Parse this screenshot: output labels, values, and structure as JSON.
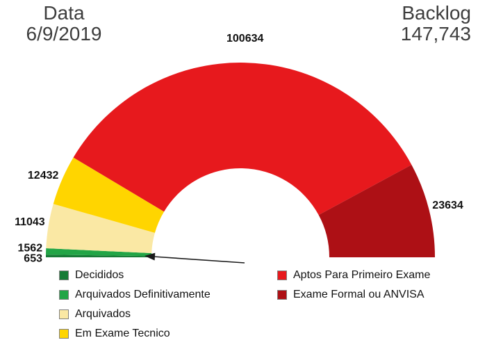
{
  "header": {
    "date_label": "Data",
    "date_value": "6/9/2019",
    "backlog_label": "Backlog",
    "backlog_value": "147,743"
  },
  "chart_data": {
    "type": "pie",
    "variant": "half-donut-gauge",
    "start_angle_deg": 180,
    "end_angle_deg": 0,
    "legend_position": "bottom",
    "segments": [
      {
        "label": "Decididos",
        "value": 653,
        "value_label": "653",
        "color": "#177b36"
      },
      {
        "label": "Arquivados Definitivamente",
        "value": 1562,
        "value_label": "1562",
        "color": "#22a546"
      },
      {
        "label": "Arquivados",
        "value": 11043,
        "value_label": "11043",
        "color": "#fae8a4"
      },
      {
        "label": "Em Exame Tecnico",
        "value": 12432,
        "value_label": "12432",
        "color": "#ffd500"
      },
      {
        "label": "Aptos Para Primeiro Exame",
        "value": 100634,
        "value_label": "100634",
        "color": "#e7191d"
      },
      {
        "label": "Exame Formal ou ANVISA",
        "value": 23634,
        "value_label": "23634",
        "color": "#ad1015"
      }
    ],
    "legend_columns": [
      [
        0,
        1,
        2,
        3
      ],
      [
        4,
        5
      ]
    ],
    "annotation": {
      "type": "arrow",
      "note": "arrow pointing to smallest segments at bottom left"
    }
  }
}
